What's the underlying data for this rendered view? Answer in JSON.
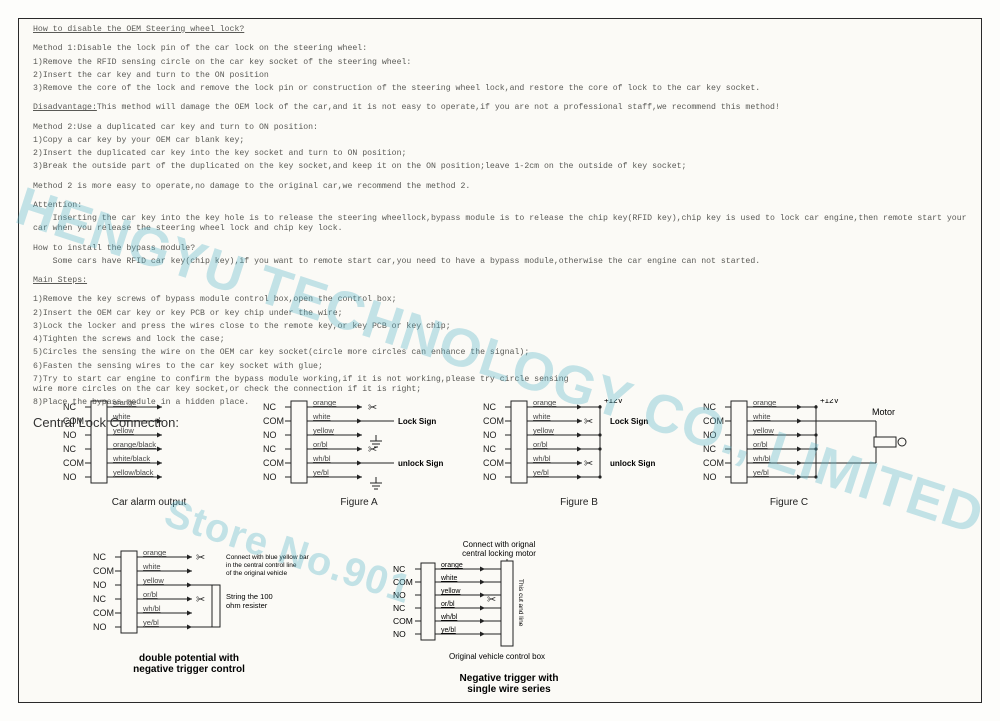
{
  "heading": "How to disable the OEM Steering wheel lock?",
  "method1_title": "Method 1:Disable the lock pin of the car lock on the steering wheel:",
  "method1_1": "1)Remove the RFID sensing circle on the car key socket of the steering wheel:",
  "method1_2": "2)Insert the car key and turn to the ON position",
  "method1_3": "3)Remove the core of the lock and remove the lock pin or construction of the steering wheel lock,and restore the core of lock to the car key socket.",
  "disadvantage": "Disadvantage:This method will damage the OEM lock of the car,and it is not easy to operate,if you are not a professional staff,we recommend this method!",
  "method2_title": "Method 2:Use a duplicated car key and turn to ON position:",
  "method2_1": "1)Copy a car key by your OEM car blank key;",
  "method2_2": "2)Insert the duplicated car key into the key socket and turn to ON position;",
  "method2_3": "3)Break the outside part of the duplicated on the key socket,and keep it on the ON position;leave 1-2cm on the outside of key socket;",
  "method2_note": "Method 2 is more easy to operate,no damage to the original car,we recommend the method 2.",
  "attention_title": "Attention:",
  "attention_body": "    Inserting the car key into the key hole is to release the steering wheellock,bypass module is to release the chip key(RFID key),chip key is used to lock car engine,then remote start your car when you release the steering wheel lock and chip key lock.",
  "install_q": "How to install the bypass module?",
  "install_a": "    Some cars have RFID car key(chip key),if you want to remote start car,you need to have a bypass module,otherwise the car engine can not started.",
  "mainsteps_title": "Main Steps:",
  "step1": "1)Remove the key screws of bypass module control box,open the control box;",
  "step2": "2)Insert the OEM car key or key PCB or key chip under the wire;",
  "step3": "3)Lock the locker and press the wires close to the remote key,or key PCB or key chip;",
  "step4": "4)Tighten the screws and lock the case;",
  "step5": "5)Circles the sensing the wire on the OEM car key socket(circle more circles can enhance the signal);",
  "step6": "6)Fasten the sensing wires to the car key socket with glue;",
  "step7": "7)Try to start car engine to confirm the bypass module working,if it is not working,please try circle sensing wire more circles on the car key socket,or check the connection if it is right;",
  "step8": "8)Place the bypass module in a hidden place.",
  "central_title": "Central Lock Connection:",
  "terminals": [
    "NC",
    "COM",
    "NO",
    "NC",
    "COM",
    "NO"
  ],
  "wires_a": [
    "orange",
    "white",
    "yellow",
    "orange/black",
    "white/black",
    "yellow/black"
  ],
  "wires_b": [
    "orange",
    "white",
    "yellow",
    "or/bl",
    "wh/bl",
    "ye/bl"
  ],
  "fig_car_alarm": "Car alarm output",
  "fig_a": "Figure A",
  "fig_b": "Figure B",
  "fig_c": "Figure C",
  "lock_sign": "Lock Sign",
  "unlock_sign": "unlock Sign",
  "v12": "+12V",
  "motor": "Motor",
  "double_pot": "double potential with\nnegative trigger control",
  "neg_trig": "Negative trigger with\nsingle wire series",
  "connect_orig": "Connect with orignal\ncentral locking motor",
  "orig_box": "Original vehicle control box",
  "string100": "String the 100\nohm resister",
  "connect_blue": "Connect with blue yellow bar\nin the central control line\nof the original vehicle",
  "watermark_main": "HENGYU TECHNOLOGY CO., LIMITED",
  "watermark_sub": "Store No.901"
}
